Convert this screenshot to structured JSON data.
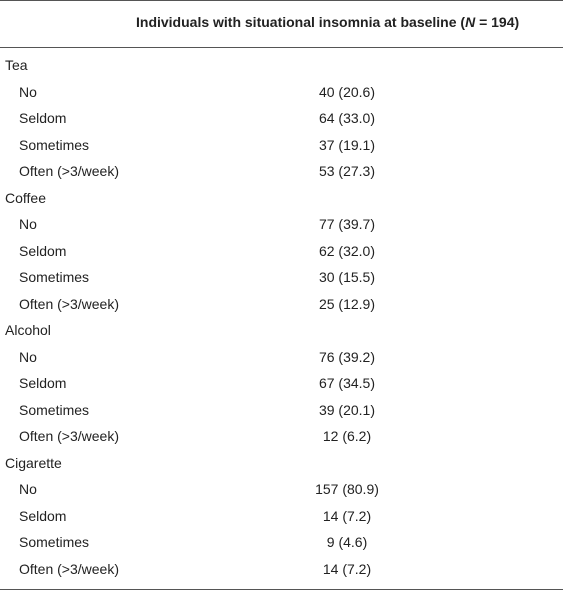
{
  "header": {
    "column_title_prefix": "Individuals with situational insomnia at baseline (",
    "column_title_n": "N",
    "column_title_suffix": " = 194)"
  },
  "groups": [
    {
      "label": "Tea",
      "rows": [
        {
          "label": "No",
          "value": "40 (20.6)"
        },
        {
          "label": "Seldom",
          "value": "64 (33.0)"
        },
        {
          "label": "Sometimes",
          "value": "37 (19.1)"
        },
        {
          "label": "Often (>3/week)",
          "value": "53 (27.3)"
        }
      ]
    },
    {
      "label": "Coffee",
      "rows": [
        {
          "label": "No",
          "value": "77 (39.7)"
        },
        {
          "label": "Seldom",
          "value": "62 (32.0)"
        },
        {
          "label": "Sometimes",
          "value": "30 (15.5)"
        },
        {
          "label": "Often (>3/week)",
          "value": "25 (12.9)"
        }
      ]
    },
    {
      "label": "Alcohol",
      "rows": [
        {
          "label": "No",
          "value": "76 (39.2)"
        },
        {
          "label": "Seldom",
          "value": "67 (34.5)"
        },
        {
          "label": "Sometimes",
          "value": "39 (20.1)"
        },
        {
          "label": "Often (>3/week)",
          "value": "12 (6.2)"
        }
      ]
    },
    {
      "label": "Cigarette",
      "rows": [
        {
          "label": "No",
          "value": "157 (80.9)"
        },
        {
          "label": "Seldom",
          "value": "14 (7.2)"
        },
        {
          "label": "Sometimes",
          "value": "9 (4.6)"
        },
        {
          "label": "Often (>3/week)",
          "value": "14 (7.2)"
        }
      ]
    }
  ]
}
